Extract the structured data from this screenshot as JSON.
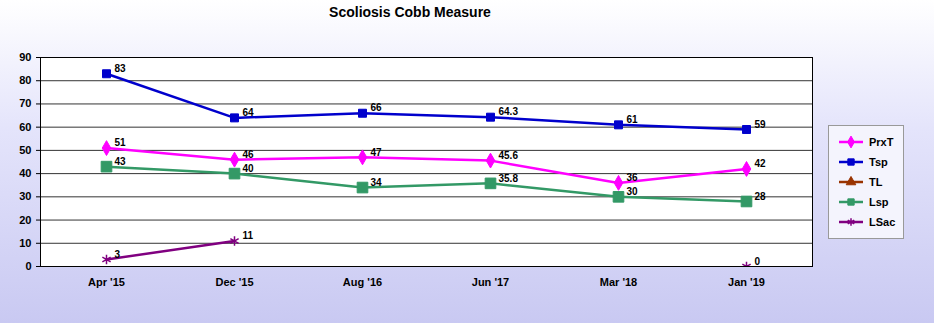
{
  "chart_data": {
    "type": "line",
    "title": "Scoliosis Cobb Measure",
    "categories": [
      "Apr '15",
      "Dec '15",
      "Aug '16",
      "Jun '17",
      "Mar '18",
      "Jan '19"
    ],
    "series": [
      {
        "name": "PrxT",
        "color": "#ff00ff",
        "marker": "diamond",
        "values": [
          51,
          46,
          47,
          45.6,
          36,
          42
        ]
      },
      {
        "name": "Tsp",
        "color": "#0000cc",
        "marker": "square",
        "values": [
          83,
          64,
          66,
          64.3,
          61,
          59
        ]
      },
      {
        "name": "TL",
        "color": "#993300",
        "marker": "triangle",
        "values": [
          null,
          null,
          null,
          null,
          null,
          null
        ]
      },
      {
        "name": "Lsp",
        "color": "#339966",
        "marker": "square",
        "values": [
          43,
          40,
          34,
          35.8,
          30,
          28
        ]
      },
      {
        "name": "LSac",
        "color": "#800080",
        "marker": "asterisk",
        "values": [
          3,
          11,
          null,
          null,
          null,
          0
        ]
      }
    ],
    "ylim": [
      0,
      90
    ],
    "yticks": [
      0,
      10,
      20,
      30,
      40,
      50,
      60,
      70,
      80,
      90
    ],
    "grid": true,
    "legend": "right",
    "data_labels": true
  }
}
